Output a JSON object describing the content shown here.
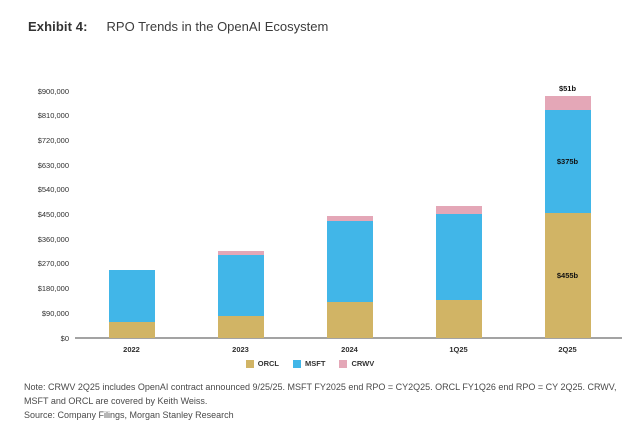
{
  "header": {
    "exhibit_label": "Exhibit 4:",
    "title": "RPO Trends in the OpenAI Ecosystem"
  },
  "chart_data": {
    "type": "bar",
    "stacked": true,
    "title": "RPO Trends in the OpenAI Ecosystem",
    "xlabel": "",
    "ylabel": "",
    "categories": [
      "2022",
      "2023",
      "2024",
      "1Q25",
      "2Q25"
    ],
    "series": [
      {
        "name": "ORCL",
        "color": "#D1B465",
        "values": [
          59000,
          80000,
          130000,
          138000,
          455000
        ]
      },
      {
        "name": "MSFT",
        "color": "#41B6E8",
        "values": [
          189000,
          222000,
          298000,
          315000,
          375000
        ]
      },
      {
        "name": "CRWV",
        "color": "#E4A7B7",
        "values": [
          0,
          14000,
          15000,
          28000,
          51000
        ]
      }
    ],
    "ylim": [
      0,
      900000
    ],
    "y_ticks": [
      "$900,000",
      "$810,000",
      "$720,000",
      "$630,000",
      "$540,000",
      "$450,000",
      "$360,000",
      "$270,000",
      "$180,000",
      "$90,000",
      "$0"
    ],
    "grid": false,
    "legend_position": "bottom",
    "bar_labels": [
      {
        "category": "2Q25",
        "series": "CRWV",
        "text": "$51b",
        "placement": "above"
      },
      {
        "category": "2Q25",
        "series": "MSFT",
        "text": "$375b",
        "placement": "inside"
      },
      {
        "category": "2Q25",
        "series": "ORCL",
        "text": "$455b",
        "placement": "inside"
      }
    ]
  },
  "footer": {
    "note": "Note: CRWV 2Q25 includes OpenAI contract announced 9/25/25. MSFT FY2025 end RPO = CY2Q25. ORCL FY1Q26 end RPO = CY 2Q25. CRWV, MSFT and ORCL are covered by Keith Weiss.",
    "source": "Source: Company Filings, Morgan Stanley Research"
  }
}
